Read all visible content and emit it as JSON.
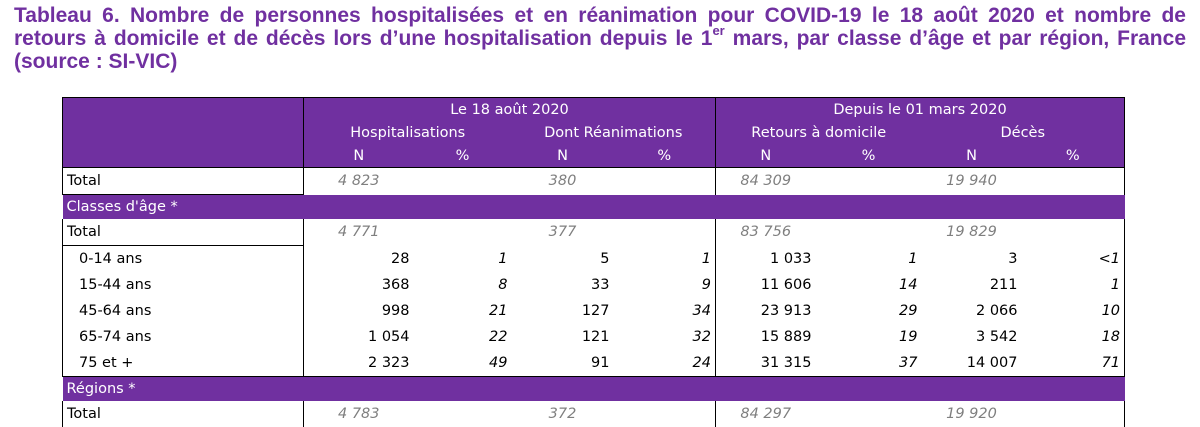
{
  "caption": {
    "part1": "Tableau 6. Nombre de personnes hospitalisées et en réanimation pour COVID-19 le 18 août 2020 et nombre de retours à domicile et de décès lors d’une hospitalisation depuis le 1",
    "sup": "er",
    "part2": " mars, par classe d’âge et par région, France (source : SI-VIC)"
  },
  "header": {
    "group1": "Le 18 août 2020",
    "group2": "Depuis le 01 mars 2020",
    "col_hosp": "Hospitalisations",
    "col_rea": "Dont Réanimations",
    "col_ret": "Retours à domicile",
    "col_dec": "Décès",
    "n": "N",
    "pct": "%"
  },
  "total": {
    "label": "Total",
    "hosp": "4 823",
    "rea": "380",
    "ret": "84 309",
    "dec": "19 940"
  },
  "age": {
    "section": "Classes d'âge *",
    "total": {
      "label": "Total",
      "hosp": "4 771",
      "rea": "377",
      "ret": "83 756",
      "dec": "19 829"
    },
    "rows": [
      {
        "label": "0-14 ans",
        "hosp_n": "28",
        "hosp_p": "1",
        "rea_n": "5",
        "rea_p": "1",
        "ret_n": "1 033",
        "ret_p": "1",
        "dec_n": "3",
        "dec_p": "<1"
      },
      {
        "label": "15-44 ans",
        "hosp_n": "368",
        "hosp_p": "8",
        "rea_n": "33",
        "rea_p": "9",
        "ret_n": "11 606",
        "ret_p": "14",
        "dec_n": "211",
        "dec_p": "1"
      },
      {
        "label": "45-64 ans",
        "hosp_n": "998",
        "hosp_p": "21",
        "rea_n": "127",
        "rea_p": "34",
        "ret_n": "23 913",
        "ret_p": "29",
        "dec_n": "2 066",
        "dec_p": "10"
      },
      {
        "label": "65-74 ans",
        "hosp_n": "1 054",
        "hosp_p": "22",
        "rea_n": "121",
        "rea_p": "32",
        "ret_n": "15 889",
        "ret_p": "19",
        "dec_n": "3 542",
        "dec_p": "18"
      },
      {
        "label": "75 et +",
        "hosp_n": "2 323",
        "hosp_p": "49",
        "rea_n": "91",
        "rea_p": "24",
        "ret_n": "31 315",
        "ret_p": "37",
        "dec_n": "14 007",
        "dec_p": "71"
      }
    ]
  },
  "regions": {
    "section": "Régions *",
    "total": {
      "label": "Total",
      "hosp": "4 783",
      "rea": "372",
      "ret": "84 297",
      "dec": "19 920"
    }
  }
}
